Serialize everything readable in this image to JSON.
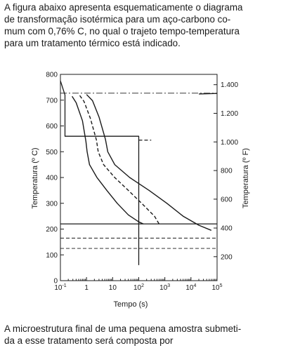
{
  "intro_lines": [
    "A figura abaixo apresenta esquematicamente o diagrama",
    "de transformação isotérmica para um aço-carbono co-",
    "mum com 0,76% C, no qual o trajeto tempo-temperatura",
    "para um tratamento térmico está indicado."
  ],
  "question_lines": [
    "A microestrutura final de uma pequena amostra submeti-",
    "da a esse tratamento será composta por"
  ],
  "chart_data": {
    "type": "line",
    "xlabel": "Tempo (s)",
    "ylabel_left": "Temperatura (º C)",
    "ylabel_right": "Temperatura (º F)",
    "x_scale": "log",
    "xlim": [
      0.1,
      100000
    ],
    "ylim": [
      0,
      800
    ],
    "x_ticks": [
      {
        "value": 0.1,
        "base": "10",
        "exp": "-1"
      },
      {
        "value": 1,
        "base": "1",
        "exp": ""
      },
      {
        "value": 10,
        "base": "10",
        "exp": ""
      },
      {
        "value": 100,
        "base": "10",
        "exp": "2"
      },
      {
        "value": 1000,
        "base": "10",
        "exp": "3"
      },
      {
        "value": 10000,
        "base": "10",
        "exp": "4"
      },
      {
        "value": 100000,
        "base": "10",
        "exp": "5"
      }
    ],
    "y_ticks_left": [
      "0",
      "100",
      "200",
      "300",
      "400",
      "500",
      "600",
      "700",
      "800"
    ],
    "y_ticks_right": [
      {
        "label": "1.400",
        "celsius": 760
      },
      {
        "label": "1.200",
        "celsius": 649
      },
      {
        "label": "1.000",
        "celsius": 538
      },
      {
        "label": "800",
        "celsius": 427
      },
      {
        "label": "600",
        "celsius": 316
      },
      {
        "label": "400",
        "celsius": 204
      },
      {
        "label": "200",
        "celsius": 93
      }
    ],
    "reference_lines": [
      {
        "name": "eutectoid-line",
        "style": "dash-dot",
        "temperature": 727
      },
      {
        "name": "martensite-start-line",
        "style": "solid",
        "temperature": 220
      },
      {
        "name": "martensite-50pct-line",
        "style": "dashed",
        "temperature": 165
      },
      {
        "name": "martensite-90pct-line",
        "style": "dashed",
        "temperature": 125
      }
    ],
    "series": [
      {
        "name": "",
        "role": "transformation-start",
        "style": "solid",
        "points": [
          [
            0.28,
            715
          ],
          [
            0.4,
            690
          ],
          [
            0.7,
            620
          ],
          [
            0.95,
            540
          ],
          [
            1.05,
            500
          ],
          [
            1.3,
            450
          ],
          [
            2.5,
            400
          ],
          [
            6,
            350
          ],
          [
            15,
            300
          ],
          [
            40,
            255
          ],
          [
            100,
            228
          ],
          [
            150,
            220
          ]
        ]
      },
      {
        "name": "",
        "role": "transformation-50pct",
        "style": "dashed",
        "points": [
          [
            0.55,
            718
          ],
          [
            0.8,
            695
          ],
          [
            1.4,
            630
          ],
          [
            2.4,
            545
          ],
          [
            2.8,
            500
          ],
          [
            4.5,
            450
          ],
          [
            12,
            400
          ],
          [
            40,
            350
          ],
          [
            130,
            300
          ],
          [
            400,
            250
          ],
          [
            600,
            220
          ]
        ]
      },
      {
        "name": "",
        "role": "transformation-end",
        "style": "solid",
        "points": [
          [
            1.0,
            722
          ],
          [
            1.7,
            698
          ],
          [
            3.0,
            635
          ],
          [
            5.3,
            548
          ],
          [
            6.5,
            500
          ],
          [
            12,
            450
          ],
          [
            45,
            400
          ],
          [
            250,
            350
          ],
          [
            1200,
            300
          ],
          [
            5000,
            250
          ],
          [
            20000,
            215
          ],
          [
            60000,
            195
          ]
        ]
      },
      {
        "name": "",
        "role": "treatment-path",
        "style": "solid",
        "points": [
          [
            0.1,
            775
          ],
          [
            0.15,
            720
          ],
          [
            0.15,
            560
          ],
          [
            100,
            560
          ],
          [
            100,
            60
          ]
        ]
      }
    ],
    "extra_segments": [
      {
        "name": "end-curve-upper-asymptote",
        "from": [
          20000,
          724
        ],
        "to": [
          100000,
          726
        ]
      },
      {
        "name": "dashed-hold-extension",
        "style": "dashed",
        "from": [
          100,
          545
        ],
        "to": [
          300,
          545
        ]
      }
    ]
  }
}
